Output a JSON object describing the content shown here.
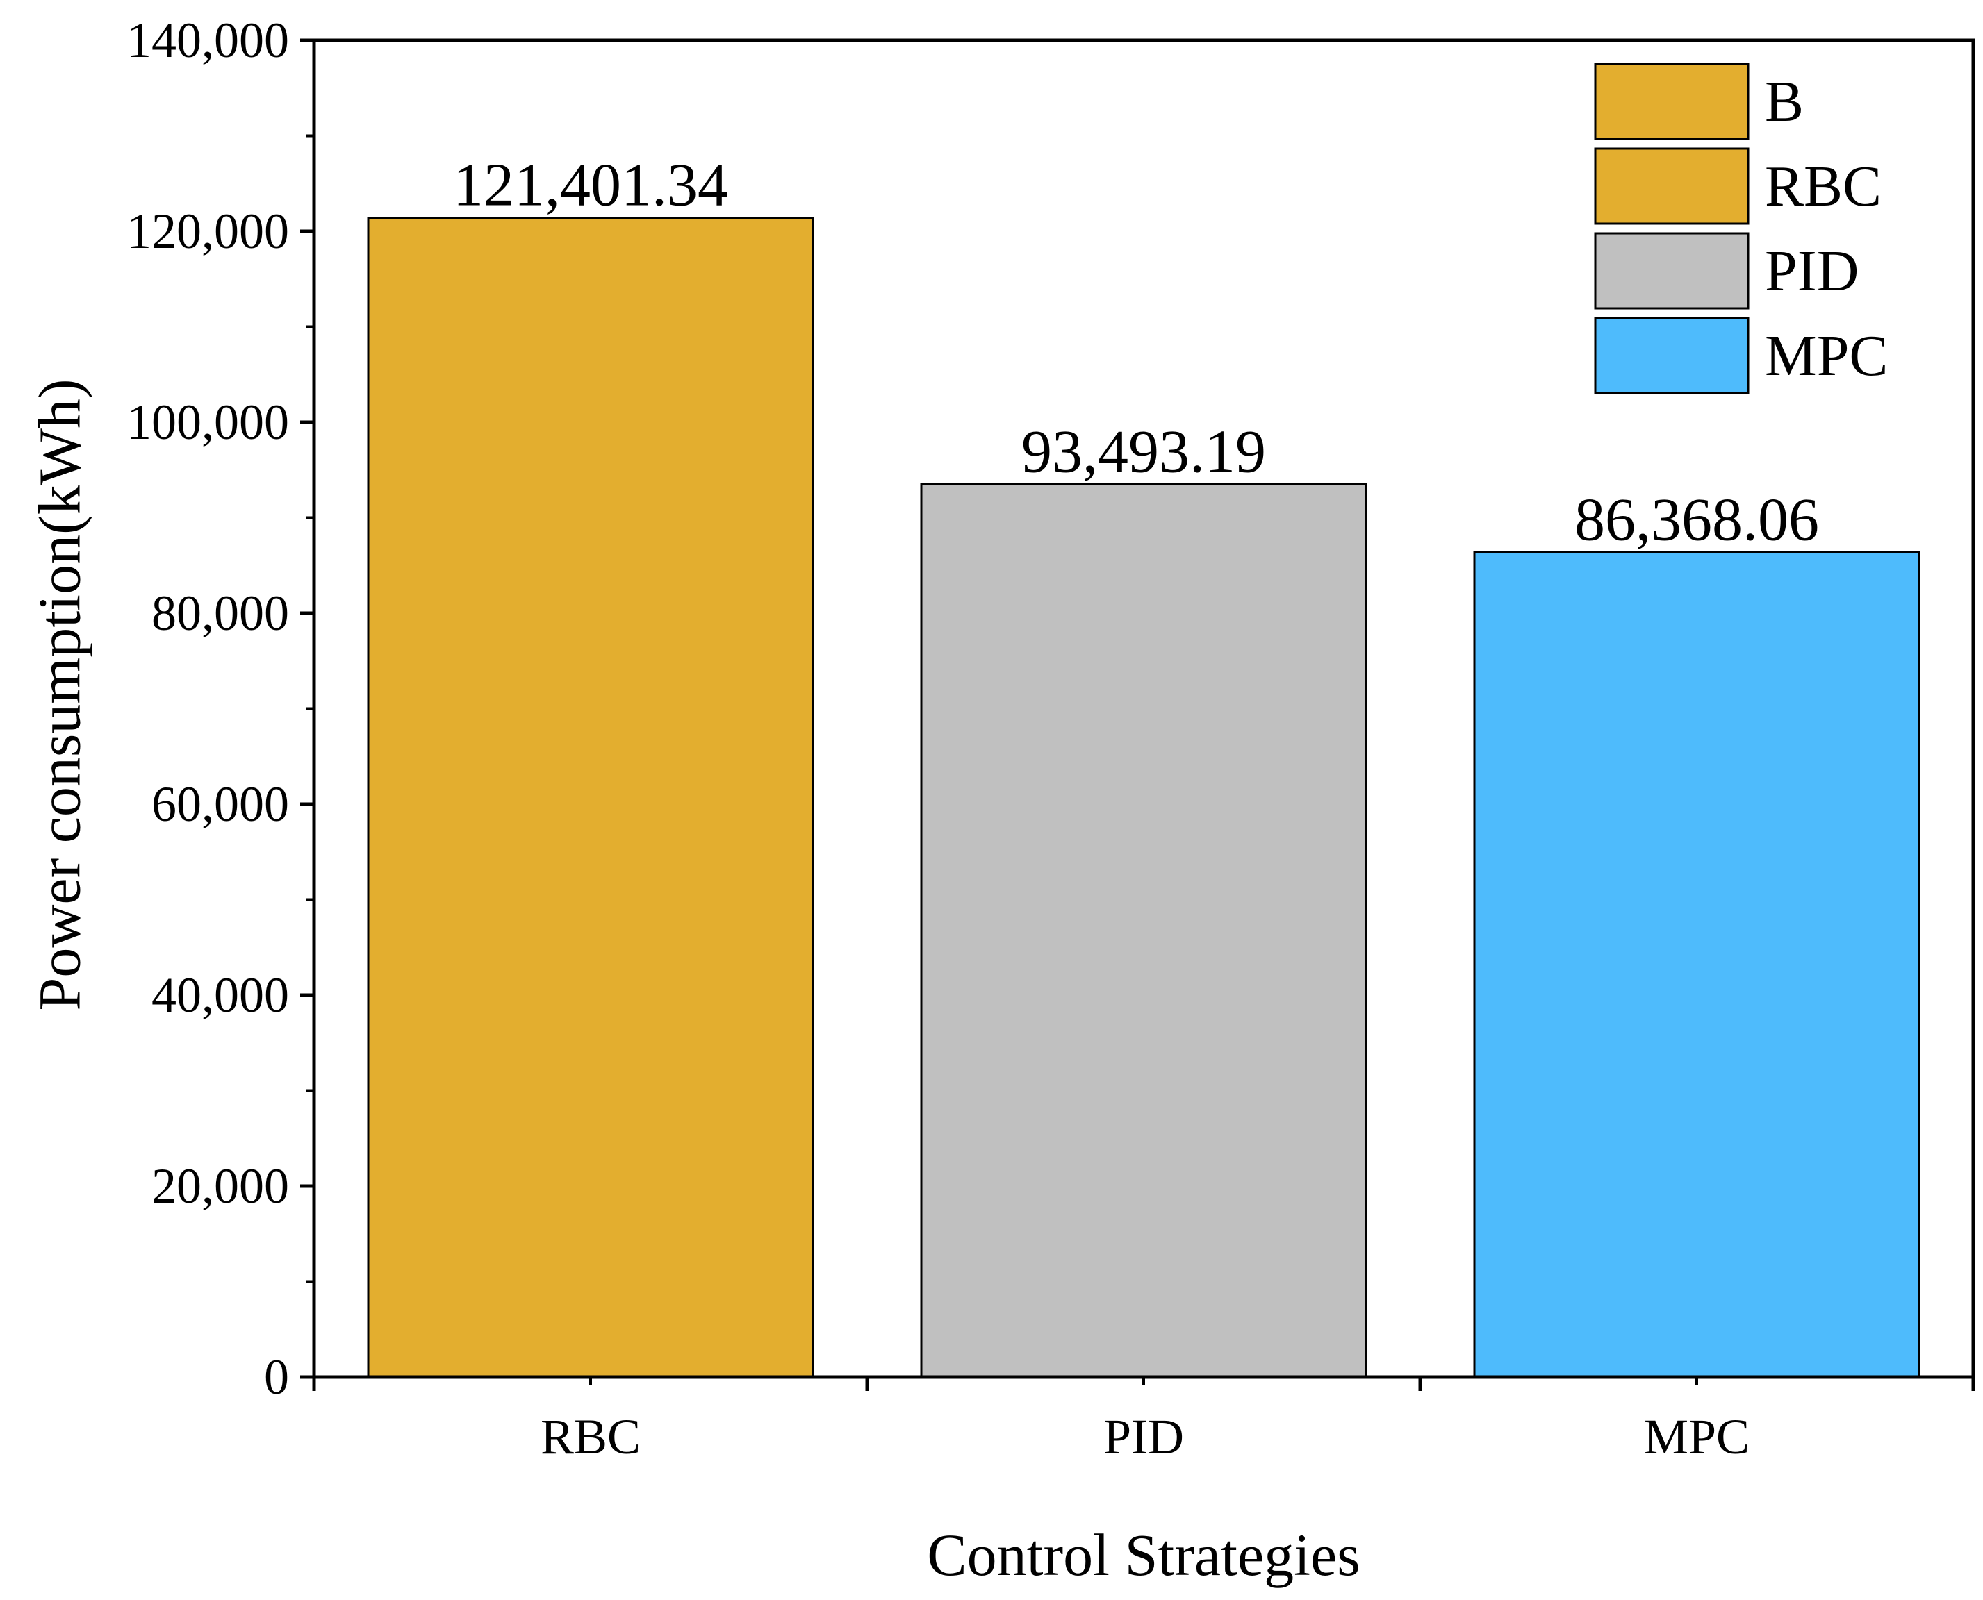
{
  "chart_data": {
    "type": "bar",
    "title": "",
    "xlabel": "Control Strategies",
    "ylabel": "Power consumption(kWh)",
    "categories": [
      "RBC",
      "PID",
      "MPC"
    ],
    "values": [
      121401.34,
      93493.19,
      86368.06
    ],
    "value_labels": [
      "121,401.34",
      "93,493.19",
      "86,368.06"
    ],
    "ylim": [
      0,
      140000
    ],
    "yticks": [
      0,
      20000,
      40000,
      60000,
      80000,
      100000,
      120000,
      140000
    ],
    "ytick_labels": [
      "0",
      "20,000",
      "40,000",
      "60,000",
      "80,000",
      "100,000",
      "120,000",
      "140,000"
    ],
    "grid": false,
    "legend_position": "top-right",
    "legend": [
      {
        "label": "B",
        "color": "#E3AE2F"
      },
      {
        "label": "RBC",
        "color": "#E3AE2F"
      },
      {
        "label": "PID",
        "color": "#C0C0C0"
      },
      {
        "label": "MPC",
        "color": "#4EBBFC"
      }
    ],
    "bar_colors": [
      "#E3AE2F",
      "#C0C0C0",
      "#4EBBFC"
    ]
  }
}
